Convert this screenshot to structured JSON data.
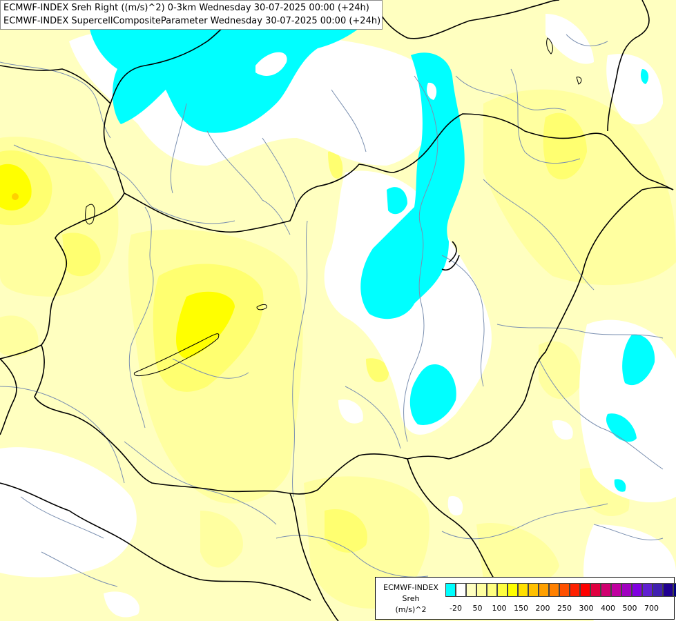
{
  "title": {
    "line1": "ECMWF-INDEX Sreh Right ((m/s)^2) 0-3km Wednesday 30-07-2025 00:00 (+24h)",
    "line2": "ECMWF-INDEX SupercellCompositeParameter Wednesday 30-07-2025 00:00 (+24h)"
  },
  "legend": {
    "line1": "ECMWF-INDEX",
    "line2": "Sreh",
    "line3": "(m/s)^2",
    "swatch_colors": [
      "#00ffff",
      "#ffffff",
      "#ffffc0",
      "#ffffa0",
      "#ffff80",
      "#ffff40",
      "#ffff00",
      "#ffe000",
      "#ffc000",
      "#ffa000",
      "#ff8000",
      "#ff5000",
      "#ff2000",
      "#ff0000",
      "#e00040",
      "#d00070",
      "#c000a0",
      "#a000c0",
      "#8000e0",
      "#6020d0",
      "#4020b0",
      "#200090",
      "#000080"
    ],
    "ticks": [
      "-20",
      "50",
      "100",
      "150",
      "200",
      "250",
      "300",
      "400",
      "500",
      "700"
    ]
  },
  "colors": {
    "background": "#ffffc0",
    "light_yellow": "#ffffa0",
    "yellow": "#ffff70",
    "strong_yellow": "#ffff00",
    "cyan": "#00ffff",
    "white": "#ffffff",
    "border": "#000000",
    "river": "#7a8fb0"
  }
}
